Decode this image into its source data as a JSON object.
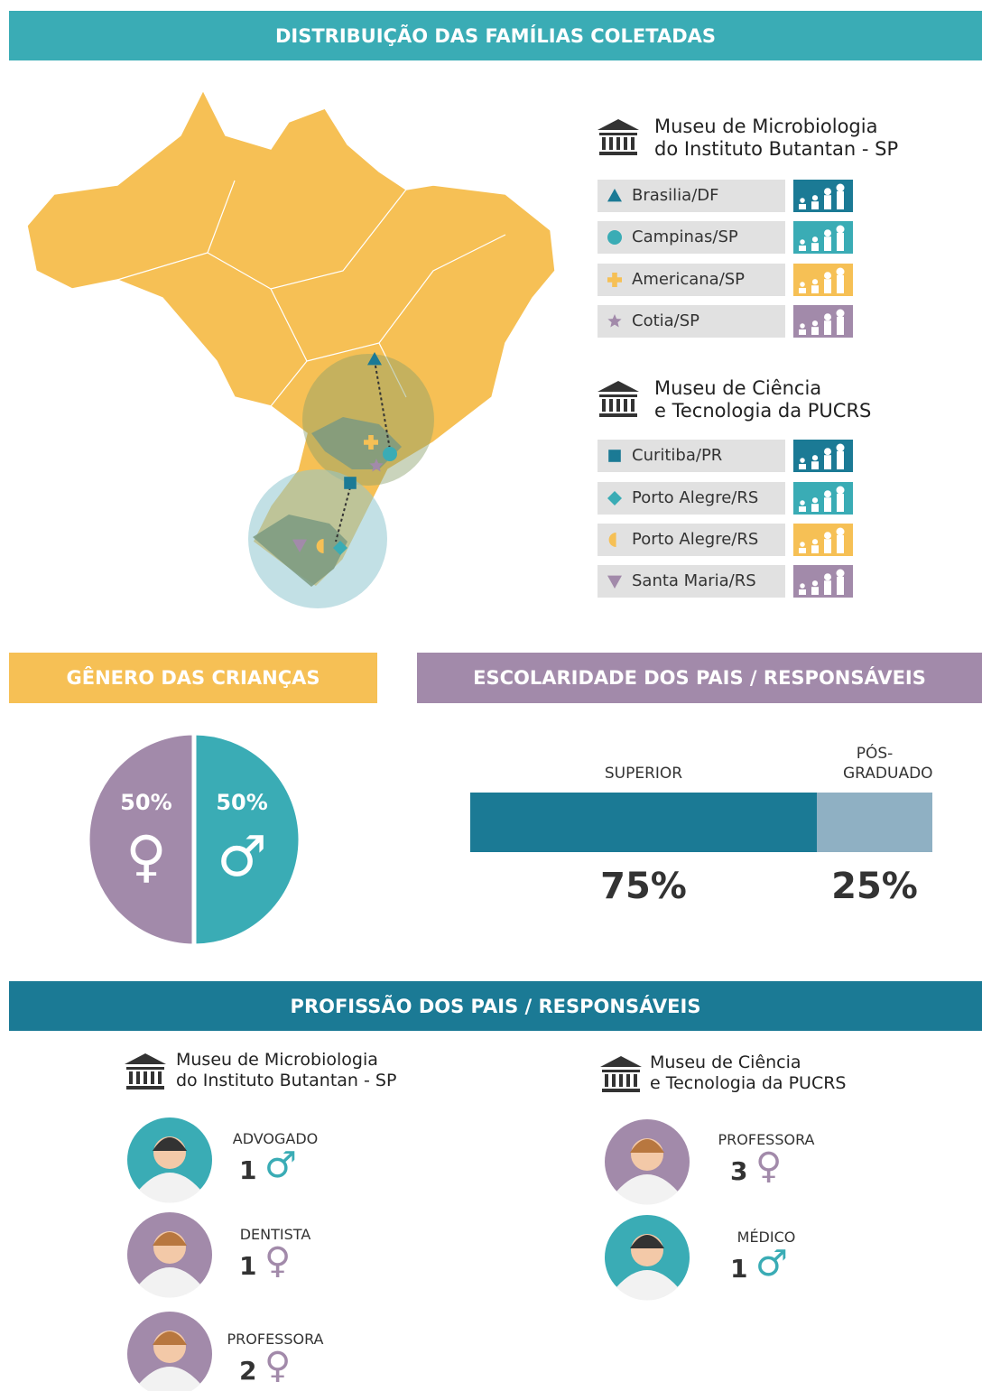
{
  "distribution": {
    "title": "DISTRIBUIÇÃO DAS FAMÍLIAS COLETADAS",
    "museums": [
      {
        "name": [
          "Museu de Microbiologia",
          "do Instituto Butantan - SP"
        ],
        "cities": [
          {
            "name": "Brasilia/DF",
            "marker": "triangle",
            "color": "#1b7a95"
          },
          {
            "name": "Campinas/SP",
            "marker": "circle",
            "color": "#3aacb5"
          },
          {
            "name": "Americana/SP",
            "marker": "plus",
            "color": "#f6c055"
          },
          {
            "name": "Cotia/SP",
            "marker": "star",
            "color": "#a28aaa"
          }
        ]
      },
      {
        "name": [
          "Museu de Ciência",
          "e Tecnologia da PUCRS"
        ],
        "cities": [
          {
            "name": "Curitiba/PR",
            "marker": "square",
            "color": "#1b7a95"
          },
          {
            "name": "Porto Alegre/RS",
            "marker": "diamond",
            "color": "#3aacb5"
          },
          {
            "name": "Porto Alegre/RS",
            "marker": "half",
            "color": "#f6c055"
          },
          {
            "name": "Santa Maria/RS",
            "marker": "down",
            "color": "#a28aaa"
          }
        ]
      }
    ]
  },
  "gender": {
    "title": "GÊNERO DAS CRIANÇAS",
    "values": [
      50,
      50
    ],
    "value_labels": [
      "50%",
      "50%"
    ],
    "symbols": [
      "♂",
      "♀"
    ],
    "colors": [
      "#3aacb5",
      "#a28aaa"
    ]
  },
  "education": {
    "title": "ESCOLARIDADE DOS PAIS / RESPONSÁVEIS",
    "categories": [
      "SUPERIOR",
      "PÓS-GRADUADO"
    ],
    "values": [
      75,
      25
    ],
    "value_labels": [
      "75%",
      "25%"
    ],
    "colors": [
      "#1b7a95",
      "#8fb0c3"
    ]
  },
  "profession": {
    "title": "PROFISSÃO DOS PAIS / RESPONSÁVEIS",
    "museums": [
      {
        "name": [
          "Museu de Microbiologia",
          "do Instituto Butantan - SP"
        ],
        "items": [
          {
            "label": "ADVOGADO",
            "count": 1,
            "symbol": "♂",
            "color": "#3aacb5"
          },
          {
            "label": "DENTISTA",
            "count": 1,
            "symbol": "♀",
            "color": "#a28aaa"
          },
          {
            "label": "PROFESSORA",
            "count": 2,
            "symbol": "♀",
            "color": "#a28aaa"
          }
        ]
      },
      {
        "name": [
          "Museu de Ciência",
          "e Tecnologia da PUCRS"
        ],
        "items": [
          {
            "label": "PROFESSORA",
            "count": 3,
            "symbol": "♀",
            "color": "#a28aaa"
          },
          {
            "label": "MÉDICO",
            "count": 1,
            "symbol": "♂",
            "color": "#3aacb5"
          }
        ]
      }
    ]
  }
}
